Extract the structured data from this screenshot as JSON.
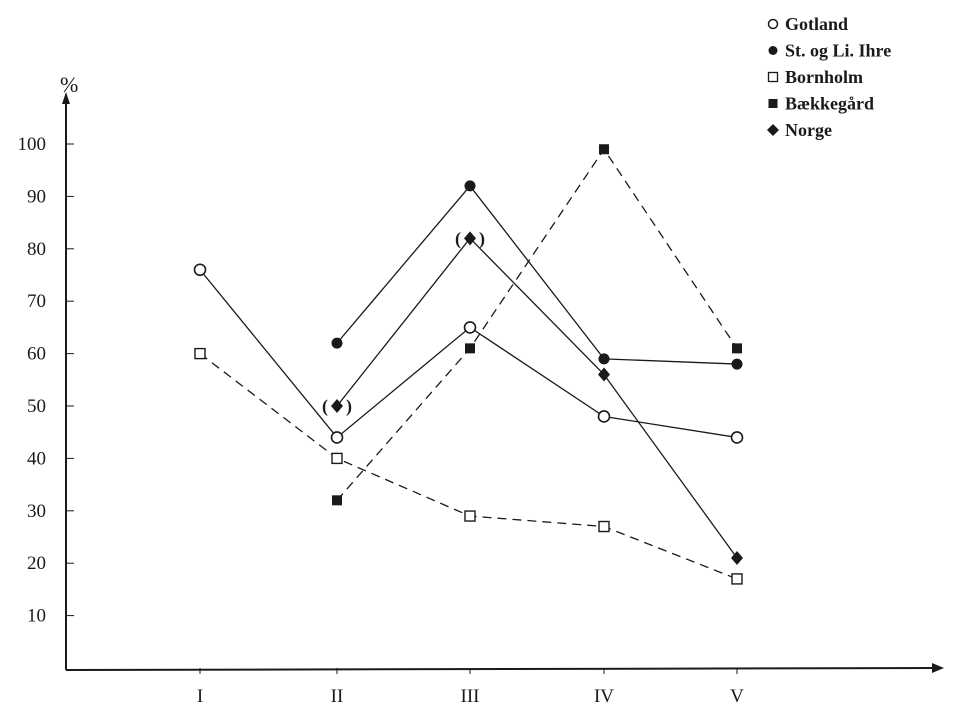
{
  "chart_data": {
    "type": "line",
    "title": "",
    "xlabel": "",
    "ylabel": "%",
    "categories": [
      "I",
      "II",
      "III",
      "IV",
      "V"
    ],
    "ylim": [
      0,
      105
    ],
    "yticks": [
      10,
      20,
      30,
      40,
      50,
      60,
      70,
      80,
      90,
      100
    ],
    "grid": false,
    "legend_position": "top-right",
    "series": [
      {
        "name": "Gotland",
        "marker": "circle-open",
        "line": "solid",
        "points": [
          {
            "category": "I",
            "value": 76
          },
          {
            "category": "II",
            "value": 44
          },
          {
            "category": "III",
            "value": 65
          },
          {
            "category": "IV",
            "value": 48
          },
          {
            "category": "V",
            "value": 44
          }
        ]
      },
      {
        "name": "St. og Li. Ihre",
        "marker": "circle-filled",
        "line": "solid",
        "points": [
          {
            "category": "II",
            "value": 62
          },
          {
            "category": "III",
            "value": 92
          },
          {
            "category": "IV",
            "value": 59
          },
          {
            "category": "V",
            "value": 58
          }
        ]
      },
      {
        "name": "Bornholm",
        "marker": "square-open",
        "line": "dashed",
        "points": [
          {
            "category": "I",
            "value": 60
          },
          {
            "category": "II",
            "value": 40
          },
          {
            "category": "III",
            "value": 29
          },
          {
            "category": "IV",
            "value": 27
          },
          {
            "category": "V",
            "value": 17
          }
        ]
      },
      {
        "name": "Bækkegård",
        "marker": "square-filled",
        "line": "dashed",
        "points": [
          {
            "category": "II",
            "value": 32
          },
          {
            "category": "III",
            "value": 61
          },
          {
            "category": "IV",
            "value": 99
          },
          {
            "category": "V",
            "value": 61
          }
        ]
      },
      {
        "name": "Norge",
        "marker": "diamond-filled",
        "line": "solid",
        "points": [
          {
            "category": "II",
            "value": 50,
            "parenthesized": true
          },
          {
            "category": "III",
            "value": 82,
            "parenthesized": true
          },
          {
            "category": "IV",
            "value": 56
          },
          {
            "category": "V",
            "value": 21
          }
        ]
      }
    ],
    "annotations": [
      {
        "text": "(",
        "category": "II",
        "value": 50,
        "side": "left"
      },
      {
        "text": ")",
        "category": "II",
        "value": 50,
        "side": "right"
      },
      {
        "text": "(",
        "category": "III",
        "value": 82,
        "side": "left"
      },
      {
        "text": ")",
        "category": "III",
        "value": 82,
        "side": "right"
      }
    ]
  },
  "colors": {
    "ink": "#1a1a1a",
    "background": "#ffffff"
  },
  "legend_markers": [
    "circle-open",
    "circle-filled",
    "square-open",
    "square-filled",
    "diamond-filled"
  ]
}
